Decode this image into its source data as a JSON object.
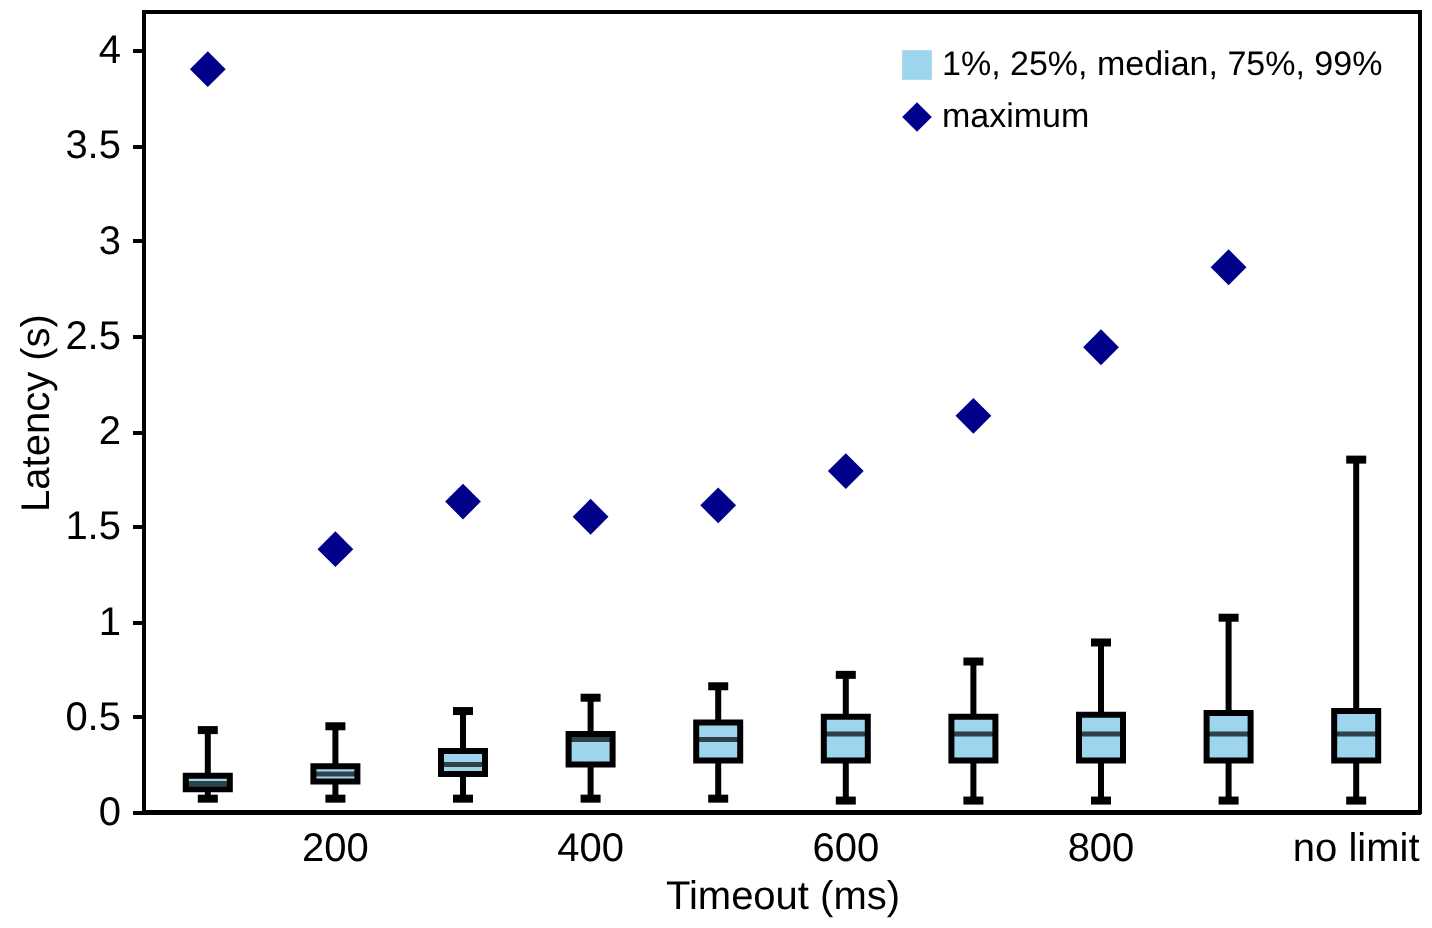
{
  "chart_data": {
    "type": "box",
    "xlabel": "Timeout (ms)",
    "ylabel": "Latency (s)",
    "categories": [
      null,
      "200",
      null,
      "400",
      null,
      "600",
      null,
      "800",
      null,
      "no limit"
    ],
    "series": [
      {
        "name": "1%, 25%, median, 75%, 99%",
        "color": "#9dd5ef",
        "boxes": [
          {
            "low": 0.07,
            "q1": 0.12,
            "median": 0.15,
            "q3": 0.19,
            "high": 0.43
          },
          {
            "low": 0.07,
            "q1": 0.16,
            "median": 0.2,
            "q3": 0.24,
            "high": 0.45
          },
          {
            "low": 0.07,
            "q1": 0.2,
            "median": 0.25,
            "q3": 0.32,
            "high": 0.53
          },
          {
            "low": 0.07,
            "q1": 0.25,
            "median": 0.38,
            "q3": 0.41,
            "high": 0.6
          },
          {
            "low": 0.07,
            "q1": 0.27,
            "median": 0.38,
            "q3": 0.47,
            "high": 0.66
          },
          {
            "low": 0.06,
            "q1": 0.27,
            "median": 0.41,
            "q3": 0.5,
            "high": 0.72
          },
          {
            "low": 0.06,
            "q1": 0.27,
            "median": 0.41,
            "q3": 0.5,
            "high": 0.79
          },
          {
            "low": 0.06,
            "q1": 0.27,
            "median": 0.41,
            "q3": 0.51,
            "high": 0.89
          },
          {
            "low": 0.06,
            "q1": 0.27,
            "median": 0.41,
            "q3": 0.52,
            "high": 1.02
          },
          {
            "low": 0.06,
            "q1": 0.27,
            "median": 0.41,
            "q3": 0.53,
            "high": 1.85
          }
        ]
      },
      {
        "name": "maximum",
        "type": "scatter",
        "color": "#00008b",
        "marker": "diamond",
        "values": [
          3.9,
          1.38,
          1.63,
          1.55,
          1.61,
          1.79,
          2.08,
          2.44,
          2.86,
          null
        ]
      }
    ],
    "ylim": [
      0,
      4.2
    ],
    "yticks": [
      0,
      0.5,
      1,
      1.5,
      2,
      2.5,
      3,
      3.5,
      4
    ],
    "legend": "top right",
    "grid": false
  }
}
